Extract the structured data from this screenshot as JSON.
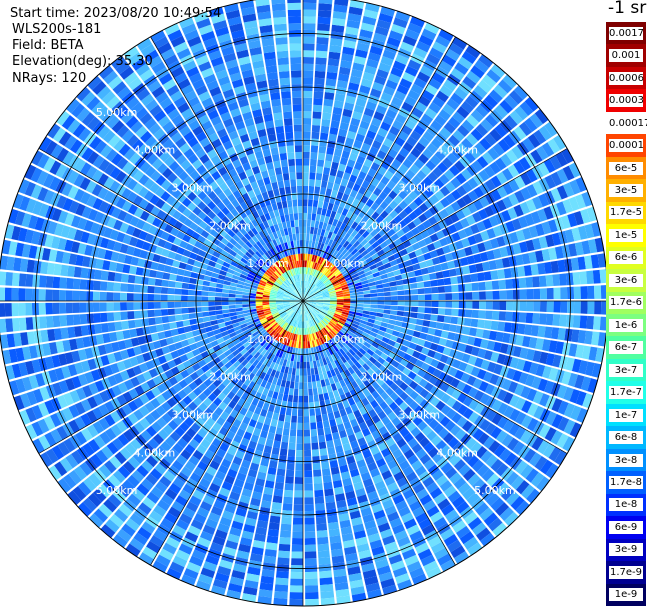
{
  "header": {
    "start_time": "Start time: 2023/08/20 10:49:54",
    "instrument": "WLS200s-181",
    "field": "Field: BETA",
    "elevation": "Elevation(deg): 35.30",
    "nrays": "NRays: 120"
  },
  "colorbar": {
    "title": "-1 sr",
    "labels": [
      "0.0017",
      "0.001",
      "0.0006",
      "0.0003",
      "0.00017",
      "0.0001",
      "6e-5",
      "3e-5",
      "1.7e-5",
      "1e-5",
      "6e-6",
      "3e-6",
      "1.7e-6",
      "1e-6",
      "6e-7",
      "3e-7",
      "1.7e-7",
      "1e-7",
      "6e-8",
      "3e-8",
      "1.7e-8",
      "1e-8",
      "6e-9",
      "3e-9",
      "1.7e-9",
      "1e-9"
    ],
    "colors": [
      "#7f0000",
      "#a00000",
      "#c80000",
      "#f00000",
      "#ffffff",
      "#ff4500",
      "#ff8c00",
      "#ffb000",
      "#ffd800",
      "#ffff00",
      "#e0ff20",
      "#c8ff40",
      "#a0ff60",
      "#7cff80",
      "#50ffa0",
      "#30ffc8",
      "#20ffe8",
      "#00e0ff",
      "#00b8ff",
      "#0090ff",
      "#0060ff",
      "#0030ff",
      "#0000f0",
      "#0000c0",
      "#000090",
      "#000060"
    ]
  },
  "chart_data": {
    "type": "heatmap",
    "projection": "polar PPI",
    "field": "BETA",
    "nrays": 120,
    "range_rings_km": [
      1,
      2,
      3,
      4,
      5
    ],
    "ring_labels": [
      "1.00km",
      "2.00km",
      "3.00km",
      "4.00km",
      "5.00km"
    ],
    "max_range_km": 5.7,
    "spokes_deg": [
      0,
      30,
      60,
      90,
      120,
      150,
      180,
      210,
      240,
      270,
      300,
      330
    ],
    "feature": "high backscatter ring near 0.8 km range"
  }
}
